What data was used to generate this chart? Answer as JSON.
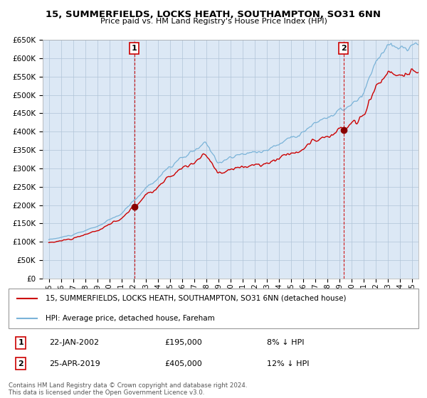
{
  "title": "15, SUMMERFIELDS, LOCKS HEATH, SOUTHAMPTON, SO31 6NN",
  "subtitle": "Price paid vs. HM Land Registry's House Price Index (HPI)",
  "hpi_color": "#7ab3d8",
  "price_color": "#cc0000",
  "marker_color": "#cc0000",
  "bg_color": "#ffffff",
  "plot_bg_color": "#dce8f5",
  "grid_color": "#b0c4d8",
  "transaction1": {
    "date_num": 2002.06,
    "price": 195000,
    "label": "1"
  },
  "transaction2": {
    "date_num": 2019.32,
    "price": 405000,
    "label": "2"
  },
  "ylim": [
    0,
    650000
  ],
  "xlim_left": 1994.5,
  "xlim_right": 2025.5,
  "yticks": [
    0,
    50000,
    100000,
    150000,
    200000,
    250000,
    300000,
    350000,
    400000,
    450000,
    500000,
    550000,
    600000,
    650000
  ],
  "xticks": [
    1995,
    1996,
    1997,
    1998,
    1999,
    2000,
    2001,
    2002,
    2003,
    2004,
    2005,
    2006,
    2007,
    2008,
    2009,
    2010,
    2011,
    2012,
    2013,
    2014,
    2015,
    2016,
    2017,
    2018,
    2019,
    2020,
    2021,
    2022,
    2023,
    2024,
    2025
  ],
  "legend_line1": "15, SUMMERFIELDS, LOCKS HEATH, SOUTHAMPTON, SO31 6NN (detached house)",
  "legend_line2": "HPI: Average price, detached house, Fareham",
  "annotation1_date": "22-JAN-2002",
  "annotation1_price": "£195,000",
  "annotation1_hpi": "8% ↓ HPI",
  "annotation2_date": "25-APR-2019",
  "annotation2_price": "£405,000",
  "annotation2_hpi": "12% ↓ HPI",
  "footnote": "Contains HM Land Registry data © Crown copyright and database right 2024.\nThis data is licensed under the Open Government Licence v3.0."
}
